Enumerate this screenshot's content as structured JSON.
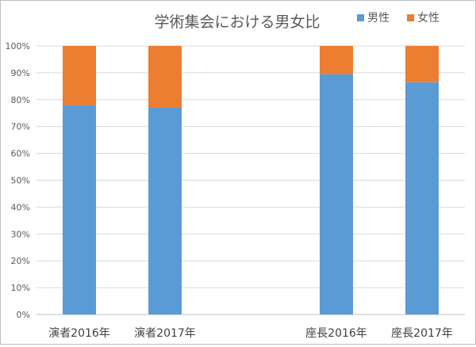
{
  "chart_data": {
    "type": "bar",
    "stacked": true,
    "title": "学術集会における男女比",
    "categories": [
      "演者2016年",
      "演者2017年",
      "",
      "座長2016年",
      "座長2017年"
    ],
    "series": [
      {
        "name": "男性",
        "color": "#5b9bd5",
        "values": [
          78,
          77,
          null,
          89.5,
          86.5
        ]
      },
      {
        "name": "女性",
        "color": "#ed7d31",
        "values": [
          22,
          23,
          null,
          10.5,
          13.5
        ]
      }
    ],
    "ylim": [
      0,
      100
    ],
    "y_ticks": [
      "0%",
      "10%",
      "20%",
      "30%",
      "40%",
      "50%",
      "60%",
      "70%",
      "80%",
      "90%",
      "100%"
    ],
    "grid": true,
    "legend_position": "top-right"
  }
}
